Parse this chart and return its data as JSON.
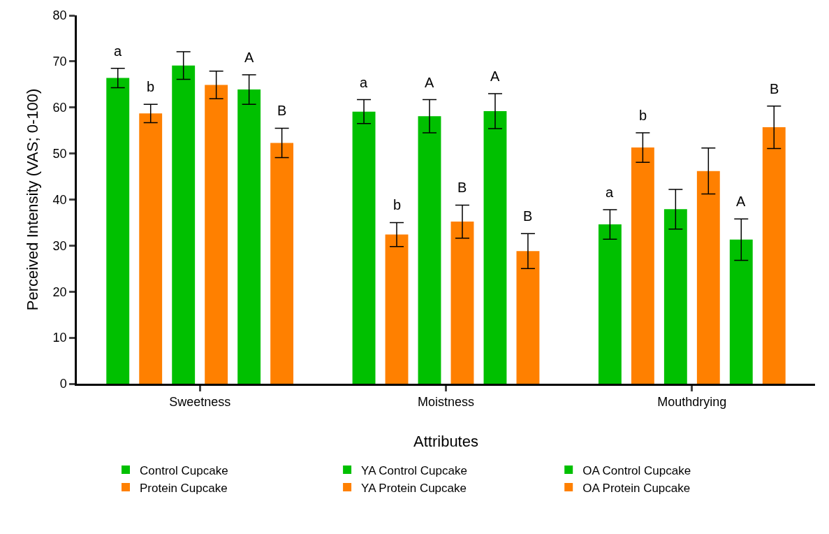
{
  "chart_data": {
    "type": "bar",
    "xlabel": "Attributes",
    "ylabel": "Perceived Intensity (VAS; 0-100)",
    "categories": [
      "Sweetness",
      "Moistness",
      "Mouthdrying"
    ],
    "series": [
      {
        "name": "Control Cupcake",
        "color": "#00c000",
        "values": [
          66.4,
          59.1,
          34.6
        ],
        "errors": [
          2.1,
          2.6,
          3.2
        ],
        "value_labels": [
          "a",
          "a",
          "a"
        ]
      },
      {
        "name": "Protein Cupcake",
        "color": "#ff8000",
        "values": [
          58.7,
          32.4,
          51.3
        ],
        "errors": [
          2,
          2.6,
          3.2
        ],
        "value_labels": [
          "b",
          "b",
          "b"
        ]
      },
      {
        "name": "YA Control Cupcake",
        "color": "#00c000",
        "values": [
          69.1,
          58.1,
          37.9
        ],
        "errors": [
          3,
          3.6,
          4.3
        ],
        "value_labels": [
          null,
          "A",
          null
        ]
      },
      {
        "name": "YA Protein Cupcake",
        "color": "#ff8000",
        "values": [
          64.9,
          35.2,
          46.2
        ],
        "errors": [
          3,
          3.6,
          5
        ],
        "value_labels": [
          null,
          "B",
          null
        ]
      },
      {
        "name": "OA Control Cupcake",
        "color": "#00c000",
        "values": [
          63.9,
          59.2,
          31.3
        ],
        "errors": [
          3.2,
          3.8,
          4.5
        ],
        "value_labels": [
          "A",
          "A",
          "A"
        ]
      },
      {
        "name": "OA Protein Cupcake",
        "color": "#ff8000",
        "values": [
          52.3,
          28.8,
          55.7
        ],
        "errors": [
          3.2,
          3.8,
          4.6
        ],
        "value_labels": [
          "B",
          "B",
          "B"
        ]
      }
    ],
    "ylim": [
      0,
      80
    ],
    "yticks": [
      0,
      10,
      20,
      30,
      40,
      50,
      60,
      70,
      80
    ],
    "legend": "bottom"
  }
}
